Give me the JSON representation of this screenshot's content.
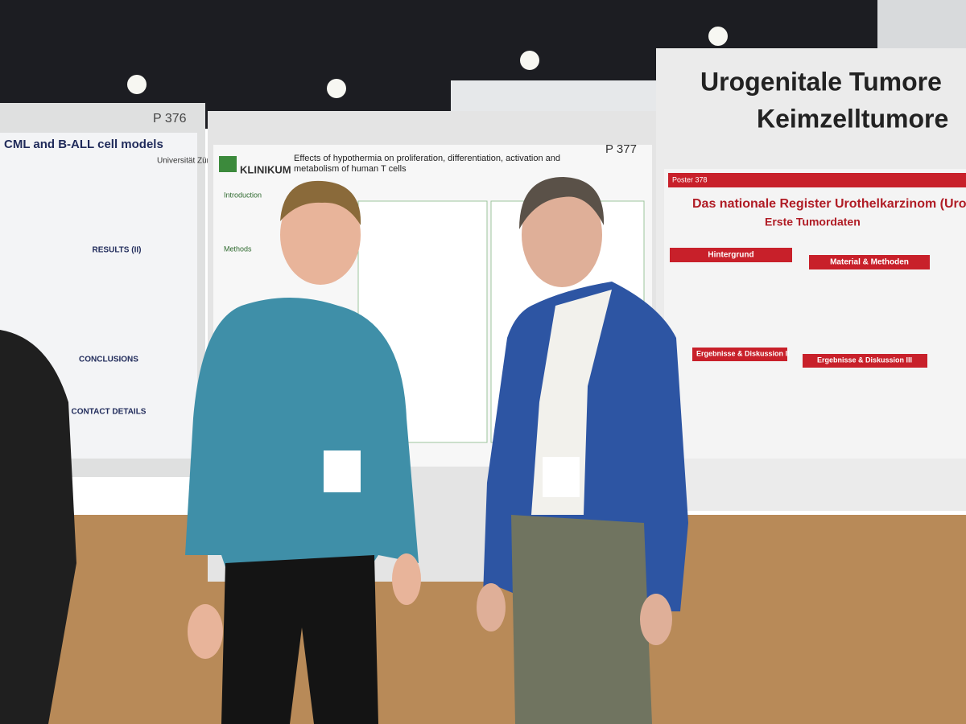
{
  "posters": [
    {
      "number": "P 376",
      "title": "CML and B-ALL cell models",
      "institution": "Universität Zürich",
      "sections": [
        "RESULTS (II)",
        "CONCLUSIONS",
        "CONTACT DETAILS"
      ]
    },
    {
      "number": "P 377",
      "institution": "KLINIKUM",
      "title_lines": [
        "Effects of hypothermia on proliferation, differentiation, activation and",
        "metabolism of human T cells"
      ],
      "sections": [
        "Introduction",
        "Methods"
      ]
    },
    {
      "banner_lines": [
        "Urogenitale Tumore",
        "Keimzelltumore"
      ],
      "number": "Poster 378",
      "title": "Das nationale Register Urothelkarzinom (Uro",
      "subtitle": "Erste Tumordaten",
      "sections": [
        "Hintergrund",
        "Material & Methoden",
        "Ergebnisse & Diskussion II",
        "Ergebnisse & Diskussion III"
      ]
    }
  ]
}
